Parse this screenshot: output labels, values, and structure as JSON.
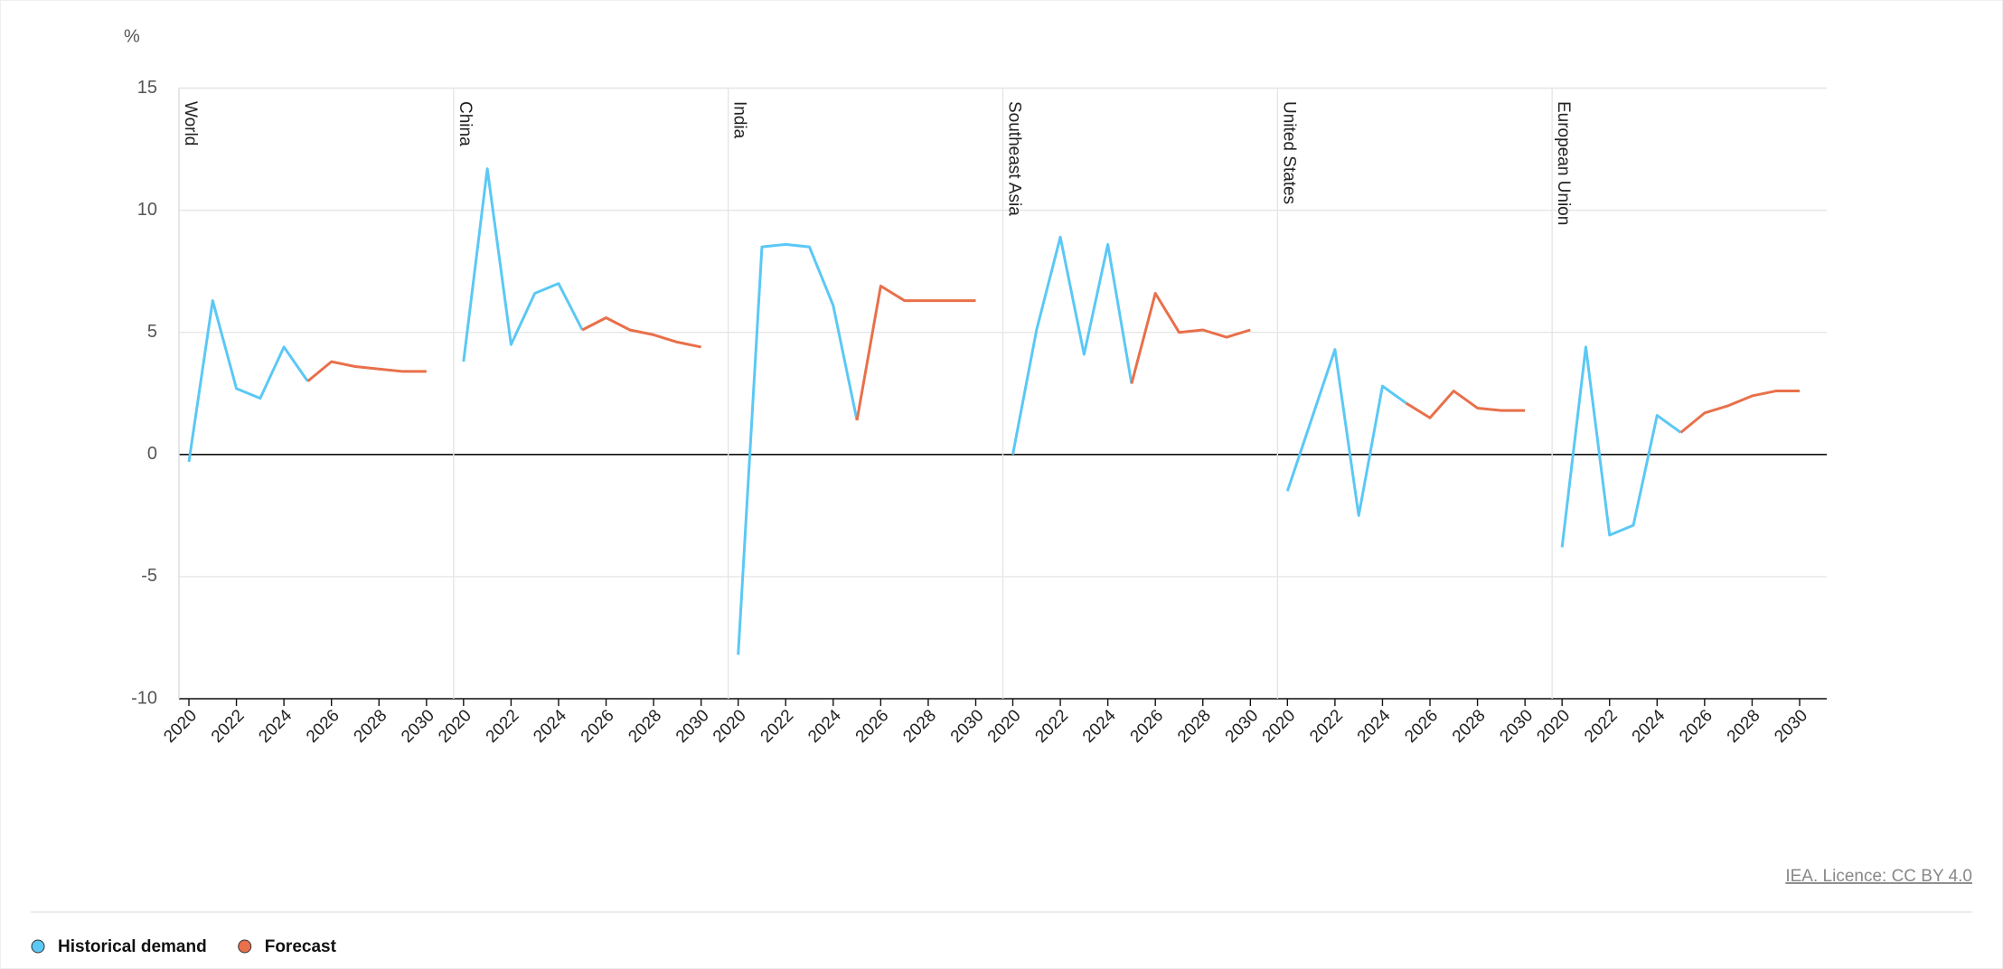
{
  "chart_data": {
    "type": "line",
    "y_label": "%",
    "panels": [
      "World",
      "China",
      "India",
      "Southeast Asia",
      "United States",
      "European Union"
    ],
    "x": [
      2020,
      2021,
      2022,
      2023,
      2024,
      2025,
      2026,
      2027,
      2028,
      2029,
      2030
    ],
    "xlim": [
      2020,
      2030
    ],
    "xticks": [
      2020,
      2022,
      2024,
      2026,
      2028,
      2030
    ],
    "ylim": [
      -10,
      15
    ],
    "yticks": [
      -10,
      -5,
      0,
      5,
      10,
      15
    ],
    "grid": true,
    "series": [
      {
        "name": "Historical demand",
        "color": "#5bc8f5",
        "values": [
          [
            -0.3,
            6.3,
            2.7,
            2.3,
            4.4,
            3.0,
            null,
            null,
            null,
            null,
            null
          ],
          [
            3.8,
            11.7,
            4.5,
            6.6,
            7.0,
            5.1,
            null,
            null,
            null,
            null,
            null
          ],
          [
            -8.2,
            8.5,
            8.6,
            8.5,
            6.1,
            1.4,
            null,
            null,
            null,
            null,
            null
          ],
          [
            0.0,
            5.1,
            8.9,
            4.1,
            8.6,
            2.9,
            null,
            null,
            null,
            null,
            null
          ],
          [
            -1.5,
            1.4,
            4.3,
            -2.5,
            2.8,
            2.1,
            null,
            null,
            null,
            null,
            null
          ],
          [
            -3.8,
            4.4,
            -3.3,
            -2.9,
            1.6,
            0.9,
            null,
            null,
            null,
            null,
            null
          ]
        ]
      },
      {
        "name": "Forecast",
        "color": "#e8704a",
        "values": [
          [
            null,
            null,
            null,
            null,
            null,
            3.0,
            3.8,
            3.6,
            3.5,
            3.4,
            3.4
          ],
          [
            null,
            null,
            null,
            null,
            null,
            5.1,
            5.6,
            5.1,
            4.9,
            4.6,
            4.4
          ],
          [
            null,
            null,
            null,
            null,
            null,
            1.4,
            6.9,
            6.3,
            6.3,
            6.3,
            6.3
          ],
          [
            null,
            null,
            null,
            null,
            null,
            2.9,
            6.6,
            5.0,
            5.1,
            4.8,
            5.1
          ],
          [
            null,
            null,
            null,
            null,
            null,
            2.1,
            1.5,
            2.6,
            1.9,
            1.8,
            1.8
          ],
          [
            null,
            null,
            null,
            null,
            null,
            0.9,
            1.7,
            2.0,
            2.4,
            2.6,
            2.6
          ]
        ]
      }
    ],
    "source": "IEA. Licence: CC BY 4.0"
  }
}
